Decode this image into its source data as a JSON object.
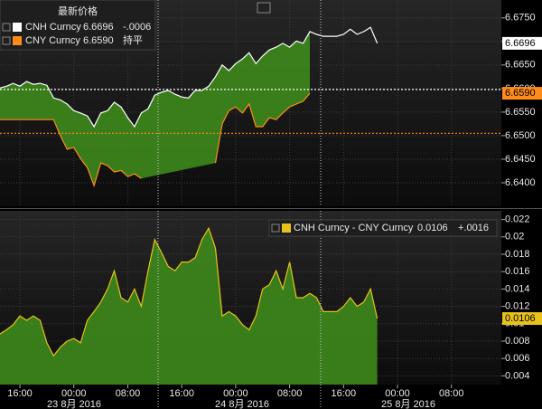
{
  "chart_data": [
    {
      "type": "line",
      "title": "最新价格",
      "x": [
        13,
        14,
        15,
        16,
        17,
        18,
        19,
        20,
        21,
        22,
        23,
        24,
        25,
        26,
        27,
        28,
        29,
        30,
        31,
        32,
        33,
        34,
        35,
        36,
        37,
        38,
        39,
        40,
        41,
        42,
        43,
        44,
        45,
        46,
        47,
        48,
        49,
        50,
        51,
        52,
        53,
        54,
        55,
        56,
        57,
        58,
        59,
        60,
        61,
        62,
        63,
        64,
        65,
        66,
        67,
        68,
        69
      ],
      "xlim": [
        13.05,
        87.4
      ],
      "ylim": [
        6.635,
        6.6788
      ],
      "yticks": [
        {
          "value": 6.675,
          "label": "6.6750"
        },
        {
          "value": 6.67,
          "label": "6.6700"
        },
        {
          "value": 6.665,
          "label": "6.6650"
        },
        {
          "value": 6.66,
          "label": "6.6600"
        },
        {
          "value": 6.655,
          "label": "6.6550"
        },
        {
          "value": 6.65,
          "label": "6.6500"
        },
        {
          "value": 6.645,
          "label": "6.6450"
        },
        {
          "value": 6.64,
          "label": "6.6400"
        }
      ],
      "grid": true,
      "fill_color": "#3d8a1c",
      "ref_lines": [
        {
          "value": 6.6598,
          "color": "#ffffff"
        },
        {
          "value": 6.6505,
          "color": "#ff8c1a"
        }
      ],
      "series": [
        {
          "name": "CNH Curncy",
          "color": "#ffffff",
          "last_value": 6.6696,
          "change": "-.0006",
          "values": [
            6.6601,
            6.6605,
            6.6611,
            6.6605,
            6.6615,
            6.6609,
            6.6611,
            6.6607,
            6.658,
            6.6576,
            6.6567,
            6.6553,
            6.6548,
            6.6542,
            6.6519,
            6.6548,
            6.6553,
            6.6571,
            6.6561,
            6.6538,
            6.6519,
            6.6548,
            6.6557,
            6.6586,
            6.6592,
            6.6596,
            6.6588,
            6.6582,
            6.658,
            6.6596,
            6.6596,
            6.6605,
            6.6625,
            6.665,
            6.6638,
            6.6653,
            6.6663,
            6.6676,
            6.6653,
            6.6669,
            6.6682,
            6.6688,
            6.6696,
            6.6688,
            6.6701,
            6.6696,
            6.6721,
            6.6715,
            6.6711,
            6.6711,
            6.6711,
            6.6715,
            6.6726,
            6.6715,
            6.6721,
            6.673,
            6.6696
          ]
        },
        {
          "name": "CNY Curncy",
          "color": "#ff8c1a",
          "last_value": {
            "value": 6.659,
            "label": "6.6590"
          },
          "change": "持平",
          "values": [
            6.6534,
            6.6534,
            6.6534,
            6.6534,
            6.6534,
            6.6534,
            6.6534,
            6.6534,
            6.6534,
            6.65,
            6.6471,
            6.6475,
            6.6451,
            6.6432,
            6.6394,
            6.6442,
            6.6436,
            6.6423,
            6.6426,
            6.6413,
            6.6419,
            6.6409,
            null,
            null,
            null,
            null,
            null,
            null,
            null,
            null,
            null,
            null,
            6.6442,
            6.6525,
            6.6553,
            6.6561,
            6.6548,
            6.6567,
            6.6519,
            6.6519,
            6.6538,
            6.6534,
            6.6548,
            6.6561,
            6.6567,
            6.6573,
            6.659,
            null,
            null,
            null,
            null,
            null,
            null,
            null,
            null,
            null,
            null
          ]
        }
      ]
    },
    {
      "type": "area",
      "x": [
        13,
        14,
        15,
        16,
        17,
        18,
        19,
        20,
        21,
        22,
        23,
        24,
        25,
        26,
        27,
        28,
        29,
        30,
        31,
        32,
        33,
        34,
        35,
        36,
        37,
        38,
        39,
        40,
        41,
        42,
        43,
        44,
        45,
        46,
        47,
        48,
        49,
        50,
        51,
        52,
        53,
        54,
        55,
        56,
        57,
        58,
        59,
        60,
        61,
        62,
        63,
        64,
        65,
        66,
        67,
        68,
        69
      ],
      "xlim": [
        13.05,
        87.4
      ],
      "xticks": [
        {
          "value": 16,
          "label": "16:00"
        },
        {
          "value": 24,
          "label": "00:00"
        },
        {
          "value": 32,
          "label": "08:00"
        },
        {
          "value": 40,
          "label": "16:00"
        },
        {
          "value": 48,
          "label": "00:00"
        },
        {
          "value": 56,
          "label": "08:00"
        },
        {
          "value": 64,
          "label": "16:00"
        },
        {
          "value": 72,
          "label": "00:00"
        },
        {
          "value": 80,
          "label": "08:00"
        }
      ],
      "date_labels": [
        "23 8月 2016",
        "24 8月 2016",
        "25 8月 2016"
      ],
      "ylim": [
        0.003,
        0.023
      ],
      "yticks": [
        0.022,
        0.02,
        0.018,
        0.016,
        0.014,
        0.012,
        0.01,
        0.008,
        0.006,
        0.004
      ],
      "grid": true,
      "fill_color": "#3d8a1c",
      "series": [
        {
          "name": "CNH Curncy - CNY Curncy",
          "color": "#e8c21a",
          "last_value": 0.0106,
          "change": "+.0016",
          "values": [
            0.0088,
            0.0093,
            0.0099,
            0.0109,
            0.0104,
            0.0109,
            0.0104,
            0.0078,
            0.0063,
            0.0073,
            0.008,
            0.0083,
            0.0078,
            0.0104,
            0.0114,
            0.0125,
            0.014,
            0.0161,
            0.013,
            0.0125,
            0.014,
            0.012,
            0.0161,
            0.0197,
            0.0182,
            0.0166,
            0.0161,
            0.0171,
            0.0171,
            0.0176,
            0.0197,
            0.021,
            0.0187,
            0.0109,
            0.0114,
            0.0109,
            0.0099,
            0.0093,
            0.0109,
            0.014,
            0.0145,
            0.0161,
            0.014,
            0.0171,
            0.013,
            0.013,
            0.0135,
            0.013,
            0.0114,
            0.0114,
            0.0114,
            0.012,
            0.013,
            0.012,
            0.0125,
            0.014,
            0.0106
          ]
        }
      ]
    }
  ]
}
